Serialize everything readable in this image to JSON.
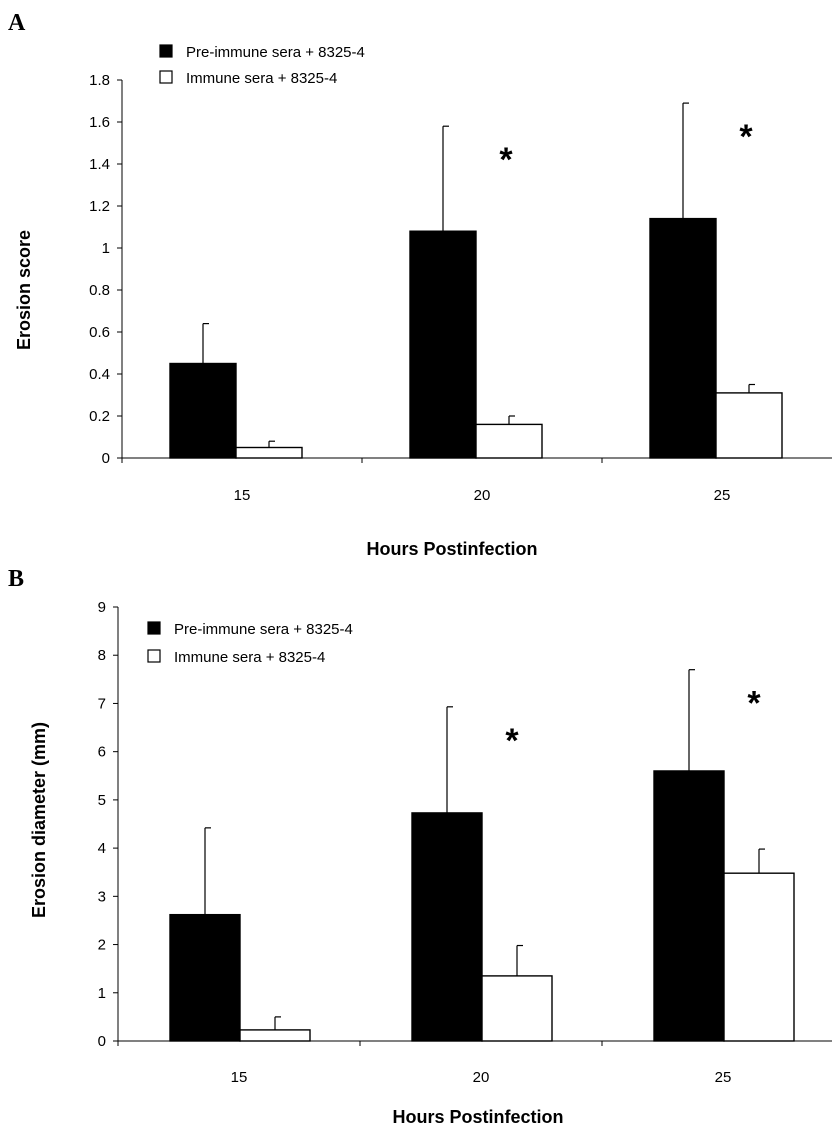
{
  "chart_data": [
    {
      "panel": "A",
      "type": "bar",
      "xlabel": "Hours Postinfection",
      "ylabel": "Erosion score",
      "categories": [
        "15",
        "20",
        "25"
      ],
      "ylim": [
        0,
        1.8
      ],
      "yticks": [
        "0",
        "0.2",
        "0.4",
        "0.6",
        "0.8",
        "1",
        "1.2",
        "1.4",
        "1.6",
        "1.8"
      ],
      "legend_position": "top-left",
      "grid": false,
      "series": [
        {
          "name": "Pre-immune sera + 8325-4",
          "color": "#000000",
          "values": [
            0.45,
            1.08,
            1.14
          ],
          "errors": [
            0.19,
            0.5,
            0.55
          ]
        },
        {
          "name": "Immune sera + 8325-4",
          "color": "#ffffff",
          "values": [
            0.05,
            0.16,
            0.31
          ],
          "errors": [
            0.03,
            0.04,
            0.04
          ]
        }
      ],
      "significance": [
        "",
        "*",
        "*"
      ]
    },
    {
      "panel": "B",
      "type": "bar",
      "xlabel": "Hours  Postinfection",
      "ylabel": "Erosion diameter (mm)",
      "categories": [
        "15",
        "20",
        "25"
      ],
      "ylim": [
        0,
        9
      ],
      "yticks": [
        "0",
        "1",
        "2",
        "3",
        "4",
        "5",
        "6",
        "7",
        "8",
        "9"
      ],
      "legend_position": "top-left",
      "grid": false,
      "series": [
        {
          "name": "Pre-immune sera + 8325-4",
          "color": "#000000",
          "values": [
            2.62,
            4.73,
            5.6
          ],
          "errors": [
            1.8,
            2.2,
            2.1
          ]
        },
        {
          "name": "Immune sera + 8325-4",
          "color": "#ffffff",
          "values": [
            0.23,
            1.35,
            3.48
          ],
          "errors": [
            0.27,
            0.63,
            0.5
          ]
        }
      ],
      "significance": [
        "",
        "*",
        "*"
      ]
    }
  ]
}
